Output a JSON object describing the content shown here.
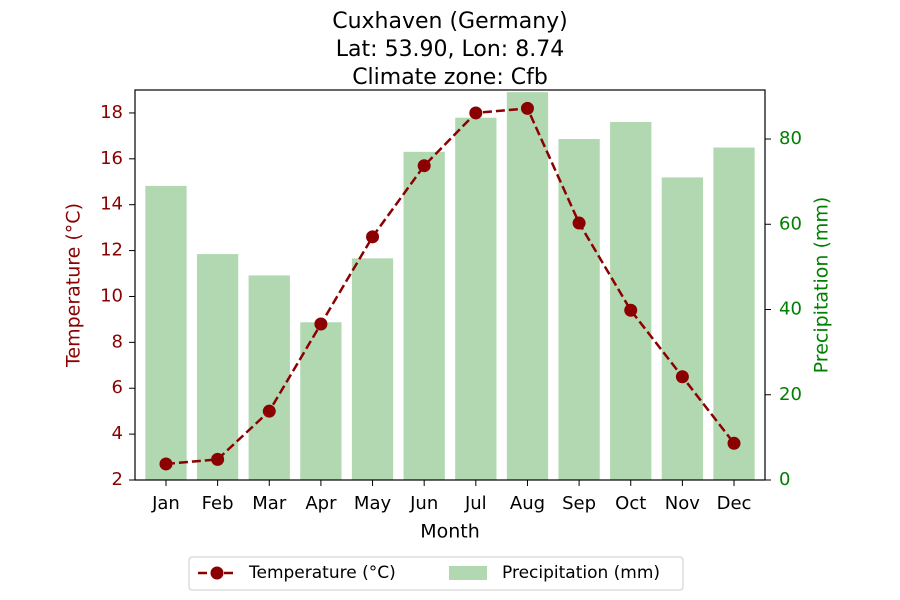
{
  "chart_data": {
    "type": "bar",
    "title_lines": [
      "Cuxhaven (Germany)",
      "Lat: 53.90, Lon: 8.74",
      "Climate zone: Cfb"
    ],
    "categories": [
      "Jan",
      "Feb",
      "Mar",
      "Apr",
      "May",
      "Jun",
      "Jul",
      "Aug",
      "Sep",
      "Oct",
      "Nov",
      "Dec"
    ],
    "xlabel": "Month",
    "series": [
      {
        "name": "Temperature (°C)",
        "type": "line",
        "axis": "left",
        "color": "#8b0000",
        "marker": "circle",
        "linestyle": "dashed",
        "values": [
          2.7,
          2.9,
          5.0,
          8.8,
          12.6,
          15.7,
          18.0,
          18.2,
          13.2,
          9.4,
          6.5,
          3.6
        ]
      },
      {
        "name": "Precipitation (mm)",
        "type": "bar",
        "axis": "right",
        "color": "#b2d8b2",
        "values": [
          69,
          53,
          48,
          37,
          52,
          77,
          85,
          91,
          80,
          84,
          71,
          78
        ]
      }
    ],
    "y_left": {
      "label": "Temperature (°C)",
      "color": "#8b0000",
      "ylim": [
        2,
        19
      ],
      "ticks": [
        2,
        4,
        6,
        8,
        10,
        12,
        14,
        16,
        18
      ]
    },
    "y_right": {
      "label": "Precipitation (mm)",
      "color": "#008000",
      "ylim": [
        0,
        91.5
      ],
      "ticks": [
        0,
        20,
        40,
        60,
        80
      ]
    },
    "grid": false,
    "legend_position": "bottom-center"
  }
}
